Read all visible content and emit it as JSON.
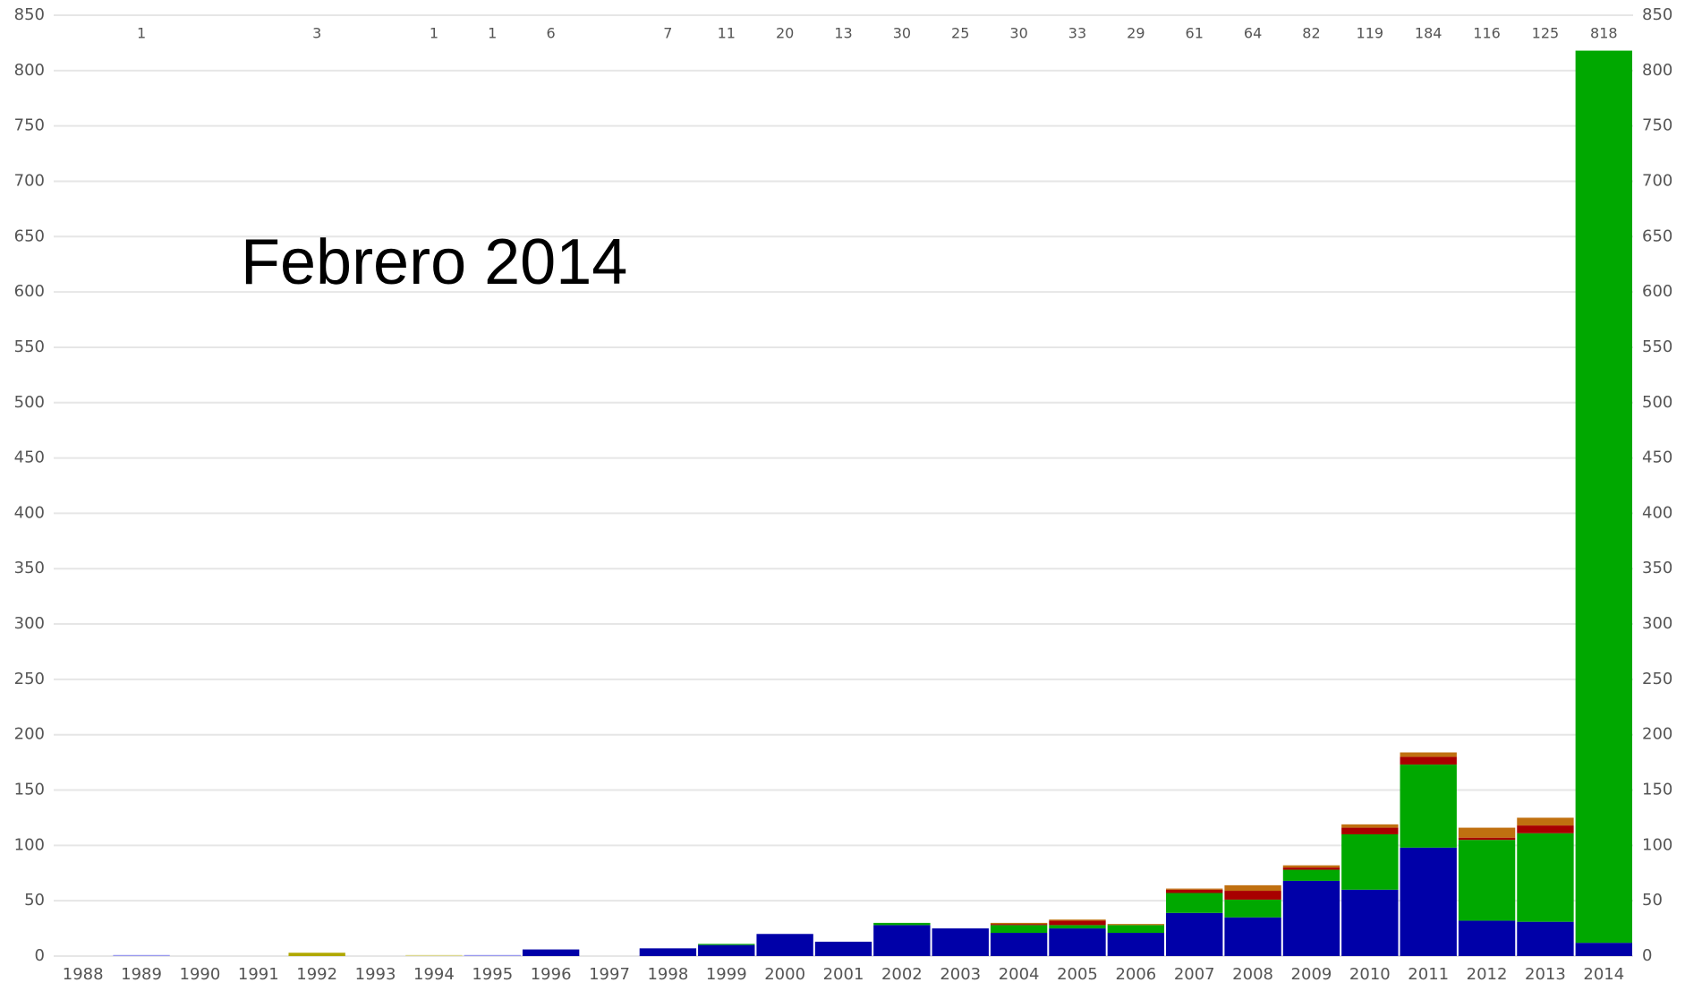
{
  "chart_data": {
    "type": "stacked_bar",
    "annotation": "Febrero 2014",
    "categories": [
      "1988",
      "1989",
      "1990",
      "1991",
      "1992",
      "1993",
      "1994",
      "1995",
      "1996",
      "1997",
      "1998",
      "1999",
      "2000",
      "2001",
      "2002",
      "2003",
      "2004",
      "2005",
      "2006",
      "2007",
      "2008",
      "2009",
      "2010",
      "2011",
      "2012",
      "2013",
      "2014"
    ],
    "totals": [
      null,
      1,
      null,
      null,
      3,
      null,
      1,
      1,
      6,
      null,
      7,
      11,
      20,
      13,
      30,
      25,
      30,
      33,
      29,
      61,
      64,
      82,
      119,
      184,
      116,
      125,
      818
    ],
    "series": [
      {
        "color": "#9999ee",
        "values": [
          null,
          1,
          null,
          null,
          null,
          null,
          null,
          1,
          null,
          null,
          null,
          null,
          null,
          null,
          null,
          null,
          null,
          null,
          null,
          null,
          null,
          null,
          null,
          null,
          null,
          null,
          null
        ]
      },
      {
        "color": "#b0a800",
        "values": [
          null,
          null,
          null,
          null,
          3,
          null,
          null,
          null,
          null,
          null,
          null,
          null,
          null,
          null,
          null,
          null,
          null,
          null,
          null,
          null,
          null,
          null,
          null,
          null,
          null,
          null,
          null
        ]
      },
      {
        "color": "#dcd890",
        "values": [
          null,
          null,
          null,
          null,
          null,
          null,
          1,
          null,
          null,
          null,
          null,
          null,
          null,
          null,
          null,
          null,
          null,
          null,
          null,
          null,
          null,
          null,
          null,
          null,
          null,
          null,
          null
        ]
      },
      {
        "color": "#0000a8",
        "values": [
          null,
          null,
          null,
          null,
          null,
          null,
          null,
          null,
          6,
          null,
          7,
          10,
          20,
          13,
          28,
          25,
          21,
          25,
          21,
          39,
          35,
          68,
          60,
          98,
          32,
          31,
          12
        ]
      },
      {
        "color": "#00a800",
        "values": [
          null,
          null,
          null,
          null,
          null,
          null,
          null,
          null,
          null,
          null,
          null,
          1,
          null,
          null,
          2,
          null,
          7,
          3,
          7,
          18,
          16,
          10,
          50,
          75,
          73,
          80,
          806
        ]
      },
      {
        "color": "#a80000",
        "values": [
          null,
          null,
          null,
          null,
          null,
          null,
          null,
          null,
          null,
          null,
          null,
          null,
          null,
          null,
          null,
          null,
          1,
          4,
          null,
          3,
          8,
          2,
          6,
          7,
          2,
          7,
          null
        ]
      },
      {
        "color": "#c07010",
        "values": [
          null,
          null,
          null,
          null,
          null,
          null,
          null,
          null,
          null,
          null,
          null,
          null,
          null,
          null,
          null,
          null,
          1,
          1,
          1,
          1,
          5,
          2,
          3,
          4,
          9,
          7,
          null
        ]
      }
    ],
    "ylim": [
      0,
      850
    ],
    "yticks": [
      0,
      50,
      100,
      150,
      200,
      250,
      300,
      350,
      400,
      450,
      500,
      550,
      600,
      650,
      700,
      750,
      800,
      850
    ],
    "grid": true
  }
}
